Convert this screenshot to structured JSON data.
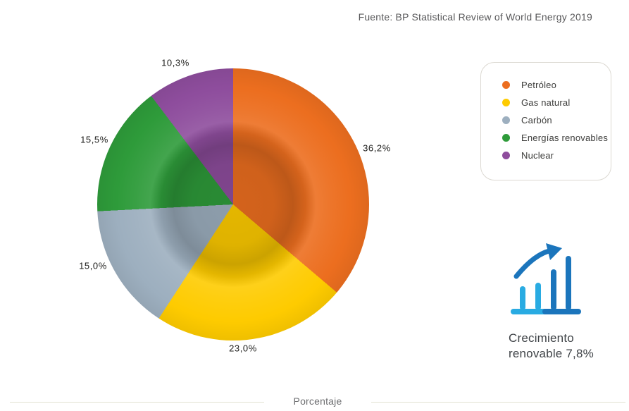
{
  "source": {
    "text": "Fuente: BP Statistical Review of World Energy 2019"
  },
  "chart_data": {
    "type": "pie",
    "categories": [
      "Petróleo",
      "Gas natural",
      "Carbón",
      "Energías renovables",
      "Nuclear"
    ],
    "values": [
      36.2,
      23.0,
      15.0,
      15.5,
      10.3
    ],
    "labels": [
      "36,2%",
      "23,0%",
      "15,0%",
      "15,5%",
      "10,3%"
    ],
    "colors": [
      "#ec6e1f",
      "#fecb00",
      "#9dafbf",
      "#2e9b3a",
      "#8e4d9d"
    ],
    "start_angle_deg": 0,
    "direction": "clockwise",
    "legend_position": "right",
    "xlabel": "Porcentaje",
    "title": ""
  },
  "legend": {
    "items": [
      {
        "label": "Petróleo",
        "color": "#ec6e1f"
      },
      {
        "label": "Gas natural",
        "color": "#fecb00"
      },
      {
        "label": "Carbón",
        "color": "#9dafbf"
      },
      {
        "label": "Energías renovables",
        "color": "#2e9b3a"
      },
      {
        "label": "Nuclear",
        "color": "#8e4d9d"
      }
    ]
  },
  "annotation": {
    "line1": "Crecimiento",
    "line2": "renovable 7,8%"
  },
  "icon": {
    "light_blue": "#29abe2",
    "dark_blue": "#1b75bc"
  }
}
